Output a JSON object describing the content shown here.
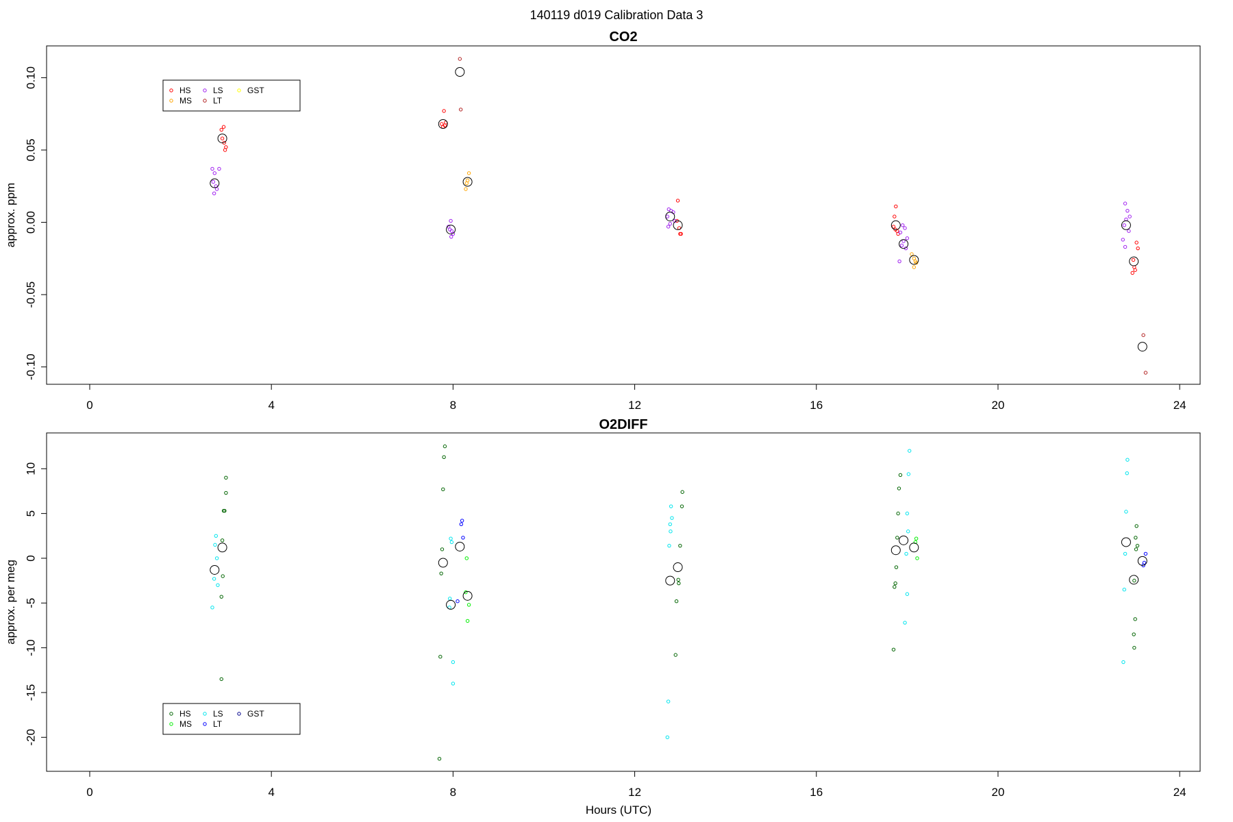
{
  "figure": {
    "title": "140119   d019   Calibration Data 3",
    "xlabel": "Hours (UTC)"
  },
  "chart_data": [
    {
      "type": "scatter",
      "title": "CO2",
      "xlabel": "",
      "ylabel": "approx. ppm",
      "xlim": [
        -0.95,
        24.45
      ],
      "ylim": [
        -0.112,
        0.122
      ],
      "x_ticks": [
        0,
        4,
        8,
        12,
        16,
        20,
        24
      ],
      "y_ticks": [
        -0.1,
        -0.05,
        0.0,
        0.05,
        0.1
      ],
      "y_tick_labels": [
        "-0.10",
        "-0.05",
        "0.00",
        "0.05",
        "0.10"
      ],
      "grid": false,
      "legend": {
        "placement": "top-left",
        "entries": [
          {
            "label": "HS",
            "color": "#ff0000"
          },
          {
            "label": "MS",
            "color": "#ffa500"
          },
          {
            "label": "LS",
            "color": "#a020f0"
          },
          {
            "label": "LT",
            "color": "#b22222"
          },
          {
            "label": "GST",
            "color": "#ffff00"
          }
        ]
      },
      "series": [
        {
          "name": "HS",
          "color": "#ff0000",
          "points": [
            [
              2.95,
              0.066
            ],
            [
              2.9,
              0.064
            ],
            [
              2.92,
              0.058
            ],
            [
              2.96,
              0.055
            ],
            [
              3.0,
              0.052
            ],
            [
              2.98,
              0.05
            ],
            [
              7.8,
              0.077
            ],
            [
              7.75,
              0.068
            ],
            [
              7.78,
              0.066
            ],
            [
              7.82,
              0.067
            ],
            [
              7.84,
              0.069
            ],
            [
              12.95,
              0.015
            ],
            [
              12.93,
              0.001
            ],
            [
              12.98,
              -0.004
            ],
            [
              13.0,
              -0.008
            ],
            [
              13.02,
              -0.008
            ],
            [
              17.75,
              0.011
            ],
            [
              17.72,
              0.004
            ],
            [
              17.7,
              -0.003
            ],
            [
              17.74,
              -0.005
            ],
            [
              17.78,
              -0.006
            ],
            [
              17.8,
              -0.008
            ],
            [
              23.05,
              -0.014
            ],
            [
              23.08,
              -0.018
            ],
            [
              22.98,
              -0.026
            ],
            [
              23.0,
              -0.031
            ],
            [
              23.02,
              -0.033
            ],
            [
              22.96,
              -0.035
            ]
          ]
        },
        {
          "name": "MS",
          "color": "#ffa500",
          "points": [
            [
              8.35,
              0.034
            ],
            [
              8.32,
              0.029
            ],
            [
              8.3,
              0.027
            ],
            [
              8.28,
              0.023
            ],
            [
              18.1,
              -0.022
            ],
            [
              18.15,
              -0.025
            ],
            [
              18.18,
              -0.027
            ],
            [
              18.2,
              -0.028
            ],
            [
              18.15,
              -0.031
            ]
          ]
        },
        {
          "name": "LS",
          "color": "#a020f0",
          "points": [
            [
              2.7,
              0.037
            ],
            [
              2.85,
              0.037
            ],
            [
              2.75,
              0.034
            ],
            [
              2.72,
              0.028
            ],
            [
              2.78,
              0.025
            ],
            [
              2.8,
              0.023
            ],
            [
              2.74,
              0.02
            ],
            [
              7.95,
              0.001
            ],
            [
              7.9,
              -0.003
            ],
            [
              7.93,
              -0.005
            ],
            [
              7.97,
              -0.006
            ],
            [
              8.0,
              -0.008
            ],
            [
              7.96,
              -0.01
            ],
            [
              12.75,
              0.009
            ],
            [
              12.8,
              0.008
            ],
            [
              12.85,
              0.007
            ],
            [
              12.72,
              0.004
            ],
            [
              12.88,
              0.001
            ],
            [
              12.78,
              -0.001
            ],
            [
              12.74,
              -0.003
            ],
            [
              17.9,
              -0.002
            ],
            [
              17.95,
              -0.004
            ],
            [
              17.85,
              -0.007
            ],
            [
              18.0,
              -0.011
            ],
            [
              17.92,
              -0.013
            ],
            [
              17.88,
              -0.016
            ],
            [
              17.97,
              -0.018
            ],
            [
              17.83,
              -0.027
            ],
            [
              22.8,
              0.013
            ],
            [
              22.85,
              0.008
            ],
            [
              22.9,
              0.004
            ],
            [
              22.82,
              0.002
            ],
            [
              22.78,
              -0.002
            ],
            [
              22.88,
              -0.006
            ],
            [
              22.75,
              -0.012
            ],
            [
              22.8,
              -0.017
            ]
          ]
        },
        {
          "name": "LT",
          "color": "#b22222",
          "points": [
            [
              8.15,
              0.113
            ],
            [
              8.17,
              0.078
            ],
            [
              23.2,
              -0.078
            ],
            [
              23.25,
              -0.104
            ]
          ]
        },
        {
          "name": "GST",
          "color": "#ffff00",
          "points": []
        }
      ],
      "means": [
        [
          2.75,
          0.027
        ],
        [
          2.92,
          0.058
        ],
        [
          7.78,
          0.068
        ],
        [
          7.95,
          -0.005
        ],
        [
          8.15,
          0.104
        ],
        [
          8.32,
          0.028
        ],
        [
          12.78,
          0.004
        ],
        [
          12.95,
          -0.002
        ],
        [
          17.75,
          -0.002
        ],
        [
          17.92,
          -0.015
        ],
        [
          18.15,
          -0.026
        ],
        [
          22.82,
          -0.002
        ],
        [
          22.99,
          -0.027
        ],
        [
          23.18,
          -0.086
        ]
      ]
    },
    {
      "type": "scatter",
      "title": "O2DIFF",
      "xlabel": "Hours (UTC)",
      "ylabel": "approx. per meg",
      "xlim": [
        -0.95,
        24.45
      ],
      "ylim": [
        -23.8,
        14.0
      ],
      "x_ticks": [
        0,
        4,
        8,
        12,
        16,
        20,
        24
      ],
      "y_ticks": [
        -20,
        -15,
        -10,
        -5,
        0,
        5,
        10
      ],
      "y_tick_labels": [
        "-20",
        "-15",
        "-10",
        "-5",
        "0",
        "5",
        "10"
      ],
      "grid": false,
      "legend": {
        "placement": "bottom-left",
        "entries": [
          {
            "label": "HS",
            "color": "#006400"
          },
          {
            "label": "MS",
            "color": "#00ee00"
          },
          {
            "label": "LS",
            "color": "#00e5ee"
          },
          {
            "label": "LT",
            "color": "#0000ff"
          },
          {
            "label": "GST",
            "color": "#00008b"
          }
        ]
      },
      "series": [
        {
          "name": "HS",
          "color": "#006400",
          "points": [
            [
              3.0,
              9.0
            ],
            [
              3.0,
              7.3
            ],
            [
              2.95,
              5.3
            ],
            [
              2.97,
              5.3
            ],
            [
              2.92,
              2.0
            ],
            [
              2.93,
              -2.0
            ],
            [
              2.9,
              -4.3
            ],
            [
              2.9,
              -13.5
            ],
            [
              7.82,
              12.5
            ],
            [
              7.8,
              11.3
            ],
            [
              7.78,
              7.7
            ],
            [
              7.76,
              1.0
            ],
            [
              7.74,
              -1.7
            ],
            [
              7.72,
              -11.0
            ],
            [
              7.7,
              -22.4
            ],
            [
              13.05,
              7.4
            ],
            [
              13.04,
              5.8
            ],
            [
              13.0,
              1.4
            ],
            [
              12.96,
              -2.4
            ],
            [
              12.97,
              -2.8
            ],
            [
              12.92,
              -4.8
            ],
            [
              12.9,
              -10.8
            ],
            [
              17.85,
              9.3
            ],
            [
              17.82,
              7.8
            ],
            [
              17.8,
              5.0
            ],
            [
              17.78,
              2.3
            ],
            [
              17.76,
              -1.0
            ],
            [
              17.74,
              -2.8
            ],
            [
              17.72,
              -3.2
            ],
            [
              17.7,
              -10.2
            ],
            [
              23.05,
              3.6
            ],
            [
              23.07,
              1.4
            ],
            [
              23.04,
              1.0
            ],
            [
              23.03,
              2.3
            ],
            [
              23.0,
              -2.5
            ],
            [
              23.02,
              -6.8
            ],
            [
              22.99,
              -8.5
            ],
            [
              23.0,
              -10.0
            ]
          ]
        },
        {
          "name": "MS",
          "color": "#00ee00",
          "points": [
            [
              8.3,
              0.0
            ],
            [
              8.28,
              -3.8
            ],
            [
              8.35,
              -5.2
            ],
            [
              8.32,
              -7.0
            ],
            [
              18.2,
              2.2
            ],
            [
              18.18,
              1.8
            ],
            [
              18.22,
              0.0
            ]
          ]
        },
        {
          "name": "LS",
          "color": "#00e5ee",
          "points": [
            [
              2.78,
              2.5
            ],
            [
              2.76,
              1.5
            ],
            [
              2.8,
              0.0
            ],
            [
              2.74,
              -2.3
            ],
            [
              2.82,
              -3.0
            ],
            [
              2.7,
              -5.5
            ],
            [
              7.95,
              2.2
            ],
            [
              7.97,
              1.8
            ],
            [
              7.93,
              -4.5
            ],
            [
              7.92,
              -5.5
            ],
            [
              8.0,
              -11.6
            ],
            [
              8.0,
              -14.0
            ],
            [
              12.8,
              5.8
            ],
            [
              12.82,
              4.5
            ],
            [
              12.78,
              3.8
            ],
            [
              12.79,
              3.0
            ],
            [
              12.76,
              1.4
            ],
            [
              12.74,
              -16.0
            ],
            [
              12.72,
              -20.0
            ],
            [
              18.05,
              12.0
            ],
            [
              18.03,
              9.4
            ],
            [
              18.0,
              5.0
            ],
            [
              18.02,
              3.0
            ],
            [
              17.98,
              0.5
            ],
            [
              18.0,
              -4.0
            ],
            [
              17.95,
              -7.2
            ],
            [
              22.85,
              11.0
            ],
            [
              22.84,
              9.5
            ],
            [
              22.82,
              5.2
            ],
            [
              22.8,
              0.5
            ],
            [
              22.78,
              -3.5
            ],
            [
              22.76,
              -11.6
            ]
          ]
        },
        {
          "name": "LT",
          "color": "#0000ff",
          "points": [
            [
              8.2,
              4.2
            ],
            [
              8.18,
              3.8
            ],
            [
              8.22,
              2.3
            ],
            [
              8.1,
              -4.8
            ],
            [
              23.25,
              0.5
            ],
            [
              23.22,
              -0.5
            ],
            [
              23.2,
              -0.8
            ]
          ]
        },
        {
          "name": "GST",
          "color": "#00008b",
          "points": []
        }
      ],
      "means": [
        [
          2.75,
          -1.3
        ],
        [
          2.92,
          1.2
        ],
        [
          7.78,
          -0.5
        ],
        [
          7.95,
          -5.2
        ],
        [
          8.15,
          1.3
        ],
        [
          8.32,
          -4.2
        ],
        [
          12.78,
          -2.5
        ],
        [
          12.95,
          -1.0
        ],
        [
          17.75,
          0.9
        ],
        [
          17.92,
          2.0
        ],
        [
          18.15,
          1.2
        ],
        [
          22.82,
          1.8
        ],
        [
          22.99,
          -2.4
        ],
        [
          23.18,
          -0.3
        ]
      ]
    }
  ]
}
